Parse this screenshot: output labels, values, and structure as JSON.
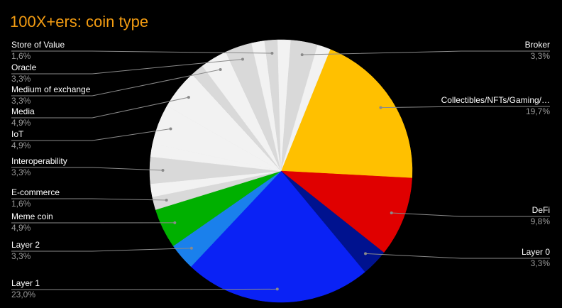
{
  "chart_data": {
    "type": "pie",
    "title": "100X+ers: coin type",
    "categories": [
      "Collectibles/NFTs/Gaming/…",
      "DeFi",
      "Layer 0",
      "Layer 1",
      "Layer 2",
      "Meme coin",
      "E-commerce",
      null,
      "Interoperability",
      null,
      "IoT",
      "Media",
      null,
      "Medium of exchange",
      "Oracle",
      null,
      "Store of Value",
      null,
      "Broker",
      null
    ],
    "values": [
      19.7,
      9.8,
      3.3,
      23.0,
      3.3,
      4.9,
      1.6,
      1.6,
      3.3,
      1.6,
      4.9,
      4.9,
      1.6,
      3.3,
      3.3,
      1.6,
      1.6,
      1.6,
      3.3,
      1.6
    ],
    "value_labels": [
      "19,7%",
      "9,8%",
      "3,3%",
      "23,0%",
      "3,3%",
      "4,9%",
      "1,6%",
      null,
      "3,3%",
      null,
      "4,9%",
      "4,9%",
      null,
      "3,3%",
      "3,3%",
      null,
      "1,6%",
      null,
      "3,3%",
      null
    ],
    "colors": [
      "#ffc000",
      "#e00000",
      "#00128f",
      "#0a22f5",
      "#1a80ec",
      "#00b000",
      "#d9d9d9",
      "#f2f2f2",
      "#d9d9d9",
      "#f2f2f2",
      "#f2f2f2",
      "#f2f2f2",
      "#d9d9d9",
      "#f2f2f2",
      "#d9d9d9",
      "#f2f2f2",
      "#d9d9d9",
      "#f2f2f2",
      "#d9d9d9",
      "#f2f2f2"
    ]
  }
}
